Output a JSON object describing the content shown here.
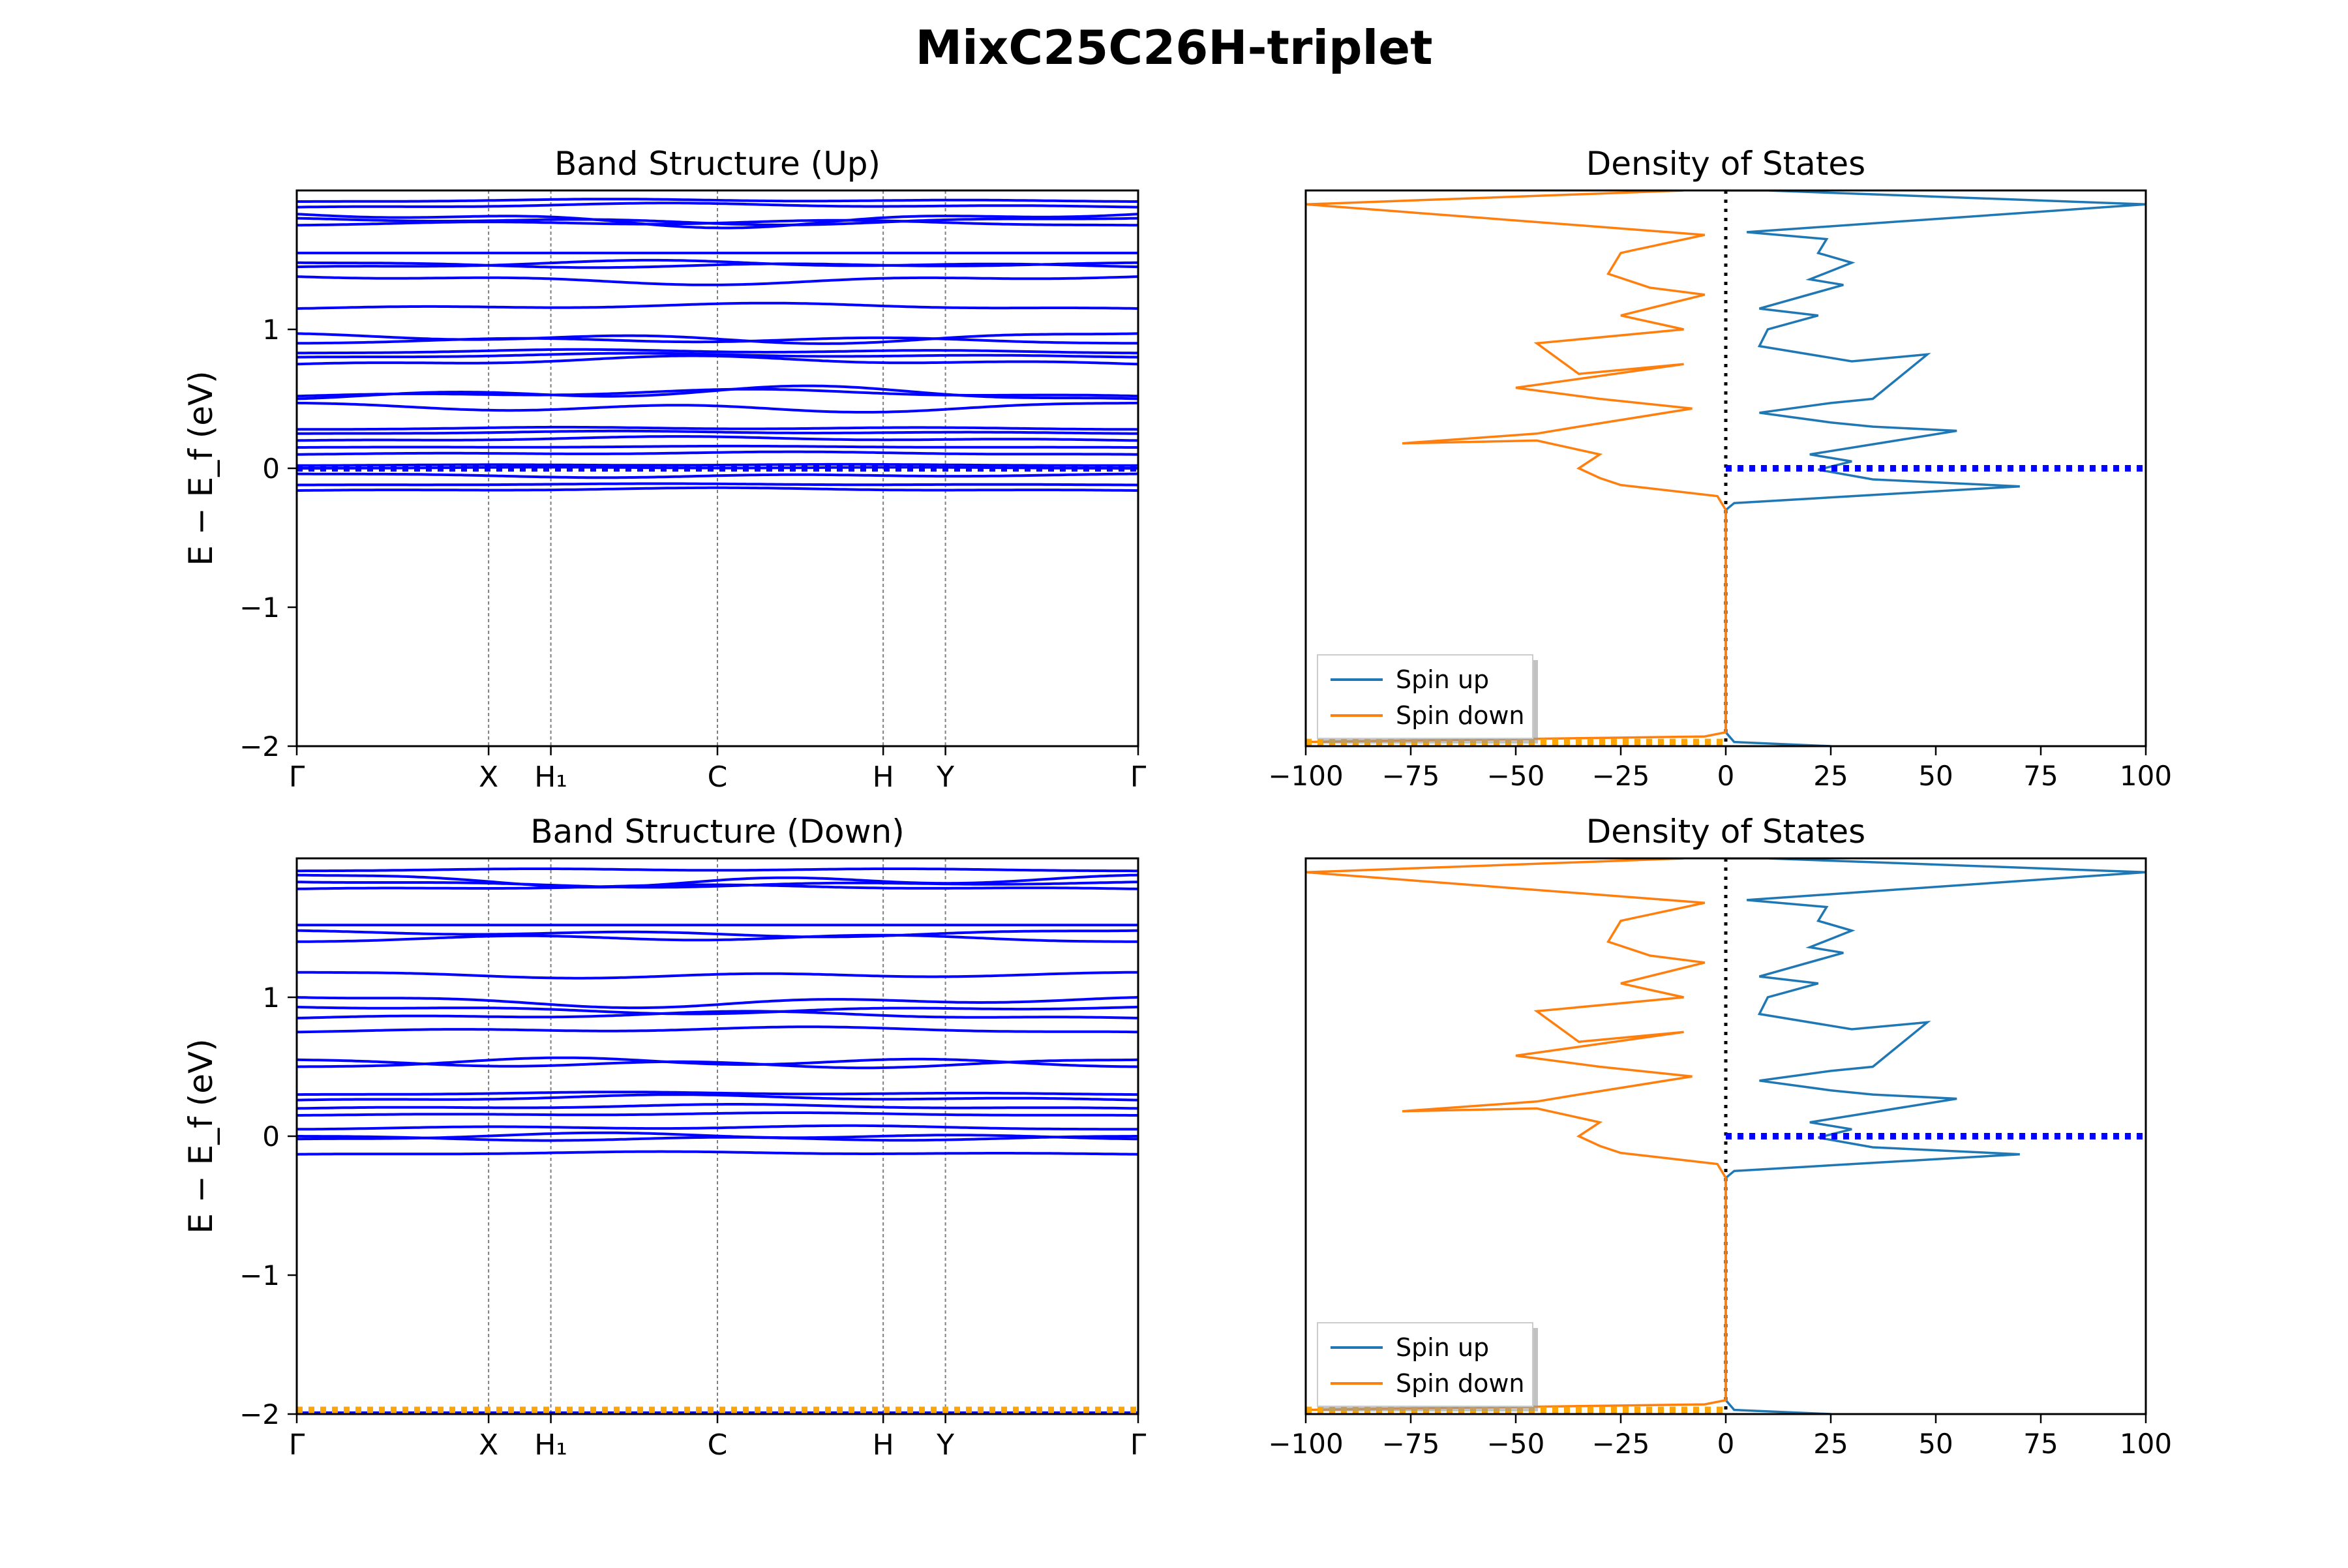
{
  "figure": {
    "title": "MixC25C26H-triplet"
  },
  "colors": {
    "band_line": "#0000ff",
    "spin_up": "#1f77b4",
    "spin_down": "#ff7f0e",
    "fermi_marker_blue": "#0000ff",
    "fermi_marker_orange": "#ffa500",
    "vline_gray": "#808080"
  },
  "chart_data": [
    {
      "id": "band_up",
      "type": "line",
      "title": "Band Structure (Up)",
      "xlabel": "",
      "ylabel": "E − E_f (eV)",
      "ylim": [
        -2,
        2
      ],
      "yticks": [
        -2,
        -1,
        0,
        1
      ],
      "xlim": [
        0,
        1
      ],
      "kpoints": [
        {
          "label": "Γ",
          "x": 0.0
        },
        {
          "label": "X",
          "x": 0.228
        },
        {
          "label": "H₁",
          "x": 0.302
        },
        {
          "label": "C",
          "x": 0.5
        },
        {
          "label": "H",
          "x": 0.697
        },
        {
          "label": "Y",
          "x": 0.771
        },
        {
          "label": "Γ",
          "x": 1.0
        }
      ],
      "fermi_marker": {
        "y": 0.0,
        "color": "blue"
      },
      "band_energies_at_gamma": [
        -0.16,
        -0.12,
        -0.04,
        0.0,
        0.02,
        0.1,
        0.15,
        0.2,
        0.25,
        0.28,
        0.47,
        0.5,
        0.52,
        0.75,
        0.8,
        0.83,
        0.9,
        0.97,
        1.15,
        1.38,
        1.45,
        1.48,
        1.55,
        1.75,
        1.8,
        1.83,
        1.88,
        1.92
      ],
      "band_dispersion": [
        0.02,
        0.01,
        -0.03,
        0.01,
        0.01,
        0.02,
        0.01,
        0.03,
        0.02,
        0.02,
        -0.08,
        0.1,
        0.05,
        0.06,
        0.03,
        0.03,
        0.05,
        -0.08,
        0.04,
        -0.06,
        0.05,
        -0.04,
        0.0,
        0.04,
        -0.05,
        -0.1,
        0.03,
        0.02
      ]
    },
    {
      "id": "dos_up",
      "type": "line",
      "title": "Density of States",
      "xlabel": "",
      "ylabel": "",
      "xlim": [
        -100,
        100
      ],
      "xticks": [
        -100,
        -75,
        -50,
        -25,
        0,
        25,
        50,
        75,
        100
      ],
      "ylim": [
        -2,
        2
      ],
      "legend": {
        "position": "lower-left",
        "entries": [
          "Spin up",
          "Spin down"
        ]
      },
      "fermi_marker": {
        "y": 0.0,
        "x": [
          0,
          100
        ],
        "color": "blue"
      },
      "lower_marker": {
        "y": -1.97,
        "x": [
          -100,
          0
        ],
        "color": "orange"
      },
      "series": [
        {
          "name": "Spin up",
          "x": [
            25,
            2,
            0,
            0,
            0,
            0,
            2,
            70,
            35,
            22,
            30,
            20,
            55,
            35,
            25,
            8,
            25,
            35,
            48,
            30,
            8,
            10,
            22,
            8,
            28,
            20,
            30,
            22,
            24,
            5,
            100,
            10,
            0
          ],
          "y": [
            -2.0,
            -1.97,
            -1.9,
            -1.5,
            -1.0,
            -0.3,
            -0.25,
            -0.13,
            -0.08,
            -0.01,
            0.05,
            0.1,
            0.27,
            0.3,
            0.33,
            0.4,
            0.47,
            0.5,
            0.82,
            0.77,
            0.88,
            1.0,
            1.1,
            1.15,
            1.32,
            1.36,
            1.48,
            1.55,
            1.65,
            1.7,
            1.9,
            2.0,
            2.0
          ]
        },
        {
          "name": "Spin down",
          "x": [
            -100,
            -5,
            0,
            0,
            0,
            0,
            -2,
            -25,
            -30,
            -35,
            -30,
            -45,
            -77,
            -45,
            -35,
            -8,
            -30,
            -50,
            -10,
            -35,
            -45,
            -10,
            -25,
            -5,
            -18,
            -28,
            -25,
            -22,
            -5,
            -100,
            -10
          ],
          "y": [
            -1.97,
            -1.93,
            -1.9,
            -1.5,
            -1.0,
            -0.3,
            -0.2,
            -0.12,
            -0.07,
            0.0,
            0.1,
            0.2,
            0.18,
            0.25,
            0.3,
            0.43,
            0.5,
            0.58,
            0.75,
            0.68,
            0.9,
            1.0,
            1.1,
            1.25,
            1.3,
            1.4,
            1.55,
            1.57,
            1.68,
            1.9,
            2.0
          ]
        }
      ]
    },
    {
      "id": "band_down",
      "type": "line",
      "title": "Band Structure (Down)",
      "xlabel": "",
      "ylabel": "E − E_f (eV)",
      "ylim": [
        -2,
        2
      ],
      "yticks": [
        -2,
        -1,
        0,
        1
      ],
      "xlim": [
        0,
        1
      ],
      "kpoints": [
        {
          "label": "Γ",
          "x": 0.0
        },
        {
          "label": "X",
          "x": 0.228
        },
        {
          "label": "H₁",
          "x": 0.302
        },
        {
          "label": "C",
          "x": 0.5
        },
        {
          "label": "H",
          "x": 0.697
        },
        {
          "label": "Y",
          "x": 0.771
        },
        {
          "label": "Γ",
          "x": 1.0
        }
      ],
      "fermi_marker": {
        "y": -1.97,
        "color": "orange"
      },
      "band_energies_at_gamma": [
        -1.99,
        -0.13,
        -0.02,
        0.0,
        0.05,
        0.15,
        0.2,
        0.26,
        0.3,
        0.5,
        0.55,
        0.75,
        0.85,
        0.93,
        1.0,
        1.18,
        1.4,
        1.48,
        1.52,
        1.78,
        1.83,
        1.88,
        1.91
      ],
      "band_dispersion": [
        0.0,
        0.02,
        0.05,
        -0.04,
        0.03,
        0.02,
        0.03,
        0.04,
        0.02,
        0.08,
        -0.07,
        0.04,
        0.05,
        -0.05,
        -0.08,
        -0.05,
        0.06,
        -0.05,
        0.0,
        0.03,
        -0.04,
        -0.1,
        0.02
      ]
    },
    {
      "id": "dos_down",
      "type": "line",
      "title": "Density of States",
      "xlabel": "",
      "ylabel": "",
      "xlim": [
        -100,
        100
      ],
      "xticks": [
        -100,
        -75,
        -50,
        -25,
        0,
        25,
        50,
        75,
        100
      ],
      "ylim": [
        -2,
        2
      ],
      "legend": {
        "position": "lower-left",
        "entries": [
          "Spin up",
          "Spin down"
        ]
      },
      "fermi_marker": {
        "y": 0.0,
        "x": [
          0,
          100
        ],
        "color": "blue"
      },
      "lower_marker": {
        "y": -1.97,
        "x": [
          -100,
          0
        ],
        "color": "orange"
      },
      "series": [
        {
          "name": "Spin up",
          "x": [
            25,
            2,
            0,
            0,
            0,
            0,
            2,
            70,
            35,
            22,
            30,
            20,
            55,
            35,
            25,
            8,
            25,
            35,
            48,
            30,
            8,
            10,
            22,
            8,
            28,
            20,
            30,
            22,
            24,
            5,
            100,
            10,
            0
          ],
          "y": [
            -2.0,
            -1.97,
            -1.9,
            -1.5,
            -1.0,
            -0.3,
            -0.25,
            -0.13,
            -0.08,
            -0.01,
            0.05,
            0.1,
            0.27,
            0.3,
            0.33,
            0.4,
            0.47,
            0.5,
            0.82,
            0.77,
            0.88,
            1.0,
            1.1,
            1.15,
            1.32,
            1.36,
            1.48,
            1.55,
            1.65,
            1.7,
            1.9,
            2.0,
            2.0
          ]
        },
        {
          "name": "Spin down",
          "x": [
            -100,
            -5,
            0,
            0,
            0,
            0,
            -2,
            -25,
            -30,
            -35,
            -30,
            -45,
            -77,
            -45,
            -35,
            -8,
            -30,
            -50,
            -10,
            -35,
            -45,
            -10,
            -25,
            -5,
            -18,
            -28,
            -25,
            -22,
            -5,
            -100,
            -10
          ],
          "y": [
            -1.97,
            -1.93,
            -1.9,
            -1.5,
            -1.0,
            -0.3,
            -0.2,
            -0.12,
            -0.07,
            0.0,
            0.1,
            0.2,
            0.18,
            0.25,
            0.3,
            0.43,
            0.5,
            0.58,
            0.75,
            0.68,
            0.9,
            1.0,
            1.1,
            1.25,
            1.3,
            1.4,
            1.55,
            1.57,
            1.68,
            1.9,
            2.0
          ]
        }
      ]
    }
  ]
}
